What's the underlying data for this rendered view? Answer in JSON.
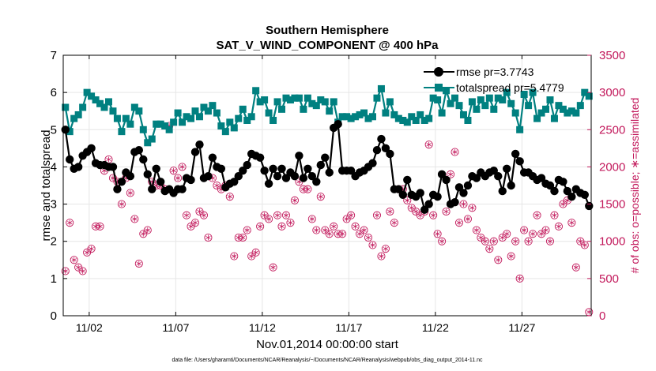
{
  "chart_data": {
    "type": "line",
    "title": "Southern Hemisphere",
    "subtitle": "SAT_V_WIND_COMPONENT @ 400 hPa",
    "xlabel": "Nov.01,2014 00:00:00 start",
    "ylabel": "rmse and totalspread",
    "ylabel_right": "# of obs: o=possible; ∗=assimilated",
    "footer": "data file: /Users/gharamti/Documents/NCAR/Reanalysis/~/Documents/NCAR/Reanalysis/webpub/obs_diag_output_2014-11.nc",
    "xlim": [
      0.5,
      31.0
    ],
    "ylim": [
      0,
      7
    ],
    "ylim_right": [
      0,
      3500
    ],
    "x_ticks": [
      2,
      7,
      12,
      17,
      22,
      27
    ],
    "x_tick_labels": [
      "11/02",
      "11/07",
      "11/12",
      "11/17",
      "11/22",
      "11/27"
    ],
    "y_ticks": [
      0,
      1,
      2,
      3,
      4,
      5,
      6,
      7
    ],
    "y_ticks_right": [
      0,
      500,
      1000,
      1500,
      2000,
      2500,
      3000,
      3500
    ],
    "grid": true,
    "legend": "top-right",
    "series": [
      {
        "name": "rmse pr=3.7743",
        "axis": "left",
        "color": "#000000",
        "x": [
          0.625,
          0.875,
          1.125,
          1.375,
          1.625,
          1.875,
          2.125,
          2.375,
          2.625,
          2.875,
          3.125,
          3.375,
          3.625,
          3.875,
          4.125,
          4.375,
          4.625,
          4.875,
          5.125,
          5.375,
          5.625,
          5.875,
          6.125,
          6.375,
          6.625,
          6.875,
          7.125,
          7.375,
          7.625,
          7.875,
          8.125,
          8.375,
          8.625,
          8.875,
          9.125,
          9.375,
          9.625,
          9.875,
          10.125,
          10.375,
          10.625,
          10.875,
          11.125,
          11.375,
          11.625,
          11.875,
          12.125,
          12.375,
          12.625,
          12.875,
          13.125,
          13.375,
          13.625,
          13.875,
          14.125,
          14.375,
          14.625,
          14.875,
          15.125,
          15.375,
          15.625,
          15.875,
          16.125,
          16.375,
          16.625,
          16.875,
          17.125,
          17.375,
          17.625,
          17.875,
          18.125,
          18.375,
          18.625,
          18.875,
          19.125,
          19.375,
          19.625,
          19.875,
          20.125,
          20.375,
          20.625,
          20.875,
          21.125,
          21.375,
          21.625,
          21.875,
          22.125,
          22.375,
          22.625,
          22.875,
          23.125,
          23.375,
          23.625,
          23.875,
          24.125,
          24.375,
          24.625,
          24.875,
          25.125,
          25.375,
          25.625,
          25.875,
          26.125,
          26.375,
          26.625,
          26.875,
          27.125,
          27.375,
          27.625,
          27.875,
          28.125,
          28.375,
          28.625,
          28.875,
          29.125,
          29.375,
          29.625,
          29.875,
          30.125,
          30.375,
          30.625,
          30.875
        ],
        "values": [
          5.0,
          4.2,
          3.95,
          4.0,
          4.3,
          4.4,
          4.5,
          4.1,
          4.05,
          4.05,
          4.0,
          4.0,
          3.4,
          3.6,
          3.85,
          3.75,
          4.4,
          4.45,
          4.2,
          3.8,
          3.4,
          3.95,
          3.6,
          3.35,
          3.4,
          3.3,
          3.4,
          3.4,
          3.7,
          3.65,
          4.4,
          4.6,
          3.7,
          3.75,
          4.25,
          4.0,
          3.95,
          3.45,
          3.55,
          3.6,
          3.75,
          3.9,
          4.05,
          4.35,
          4.3,
          4.25,
          3.9,
          3.55,
          3.95,
          3.75,
          3.95,
          3.7,
          3.85,
          3.75,
          4.3,
          3.7,
          3.95,
          3.75,
          3.6,
          4.05,
          4.25,
          3.85,
          5.05,
          5.15,
          3.9,
          3.9,
          3.9,
          3.75,
          3.85,
          3.9,
          4.0,
          4.1,
          4.45,
          4.75,
          4.5,
          4.35,
          3.4,
          3.4,
          3.25,
          3.65,
          3.25,
          3.2,
          3.3,
          2.85,
          3.0,
          3.25,
          3.2,
          3.8,
          3.65,
          3.0,
          3.05,
          3.45,
          3.3,
          3.5,
          3.75,
          3.7,
          3.85,
          3.75,
          3.85,
          3.9,
          3.75,
          3.35,
          3.95,
          3.5,
          4.35,
          4.15,
          3.85,
          3.85,
          3.75,
          3.65,
          3.7,
          3.55,
          3.5,
          3.35,
          3.65,
          3.6,
          3.35,
          3.2,
          3.4,
          3.3,
          3.25,
          2.95
        ]
      },
      {
        "name": "totalspread pr=5.4779",
        "axis": "left",
        "color": "#008080",
        "x": [
          0.625,
          0.875,
          1.125,
          1.375,
          1.625,
          1.875,
          2.125,
          2.375,
          2.625,
          2.875,
          3.125,
          3.375,
          3.625,
          3.875,
          4.125,
          4.375,
          4.625,
          4.875,
          5.125,
          5.375,
          5.625,
          5.875,
          6.125,
          6.375,
          6.625,
          6.875,
          7.125,
          7.375,
          7.625,
          7.875,
          8.125,
          8.375,
          8.625,
          8.875,
          9.125,
          9.375,
          9.625,
          9.875,
          10.125,
          10.375,
          10.625,
          10.875,
          11.125,
          11.375,
          11.625,
          11.875,
          12.125,
          12.375,
          12.625,
          12.875,
          13.125,
          13.375,
          13.625,
          13.875,
          14.125,
          14.375,
          14.625,
          14.875,
          15.125,
          15.375,
          15.625,
          15.875,
          16.125,
          16.375,
          16.625,
          16.875,
          17.125,
          17.375,
          17.625,
          17.875,
          18.125,
          18.375,
          18.625,
          18.875,
          19.125,
          19.375,
          19.625,
          19.875,
          20.125,
          20.375,
          20.625,
          20.875,
          21.125,
          21.375,
          21.625,
          21.875,
          22.125,
          22.375,
          22.625,
          22.875,
          23.125,
          23.375,
          23.625,
          23.875,
          24.125,
          24.375,
          24.625,
          24.875,
          25.125,
          25.375,
          25.625,
          25.875,
          26.125,
          26.375,
          26.625,
          26.875,
          27.125,
          27.375,
          27.625,
          27.875,
          28.125,
          28.375,
          28.625,
          28.875,
          29.125,
          29.375,
          29.625,
          29.875,
          30.125,
          30.375,
          30.625,
          30.875
        ],
        "values": [
          5.6,
          4.95,
          5.3,
          5.4,
          5.6,
          6.0,
          5.9,
          5.8,
          5.7,
          5.6,
          5.75,
          5.5,
          5.3,
          4.95,
          5.3,
          5.15,
          5.6,
          5.5,
          5.0,
          4.65,
          4.75,
          5.15,
          5.15,
          5.1,
          5.0,
          5.2,
          5.45,
          5.2,
          5.35,
          5.3,
          5.5,
          5.35,
          5.6,
          5.5,
          5.65,
          5.45,
          5.1,
          4.95,
          5.2,
          5.05,
          5.3,
          5.55,
          5.25,
          5.35,
          6.05,
          5.75,
          5.8,
          5.45,
          5.25,
          5.75,
          5.55,
          5.85,
          5.8,
          5.85,
          5.85,
          5.55,
          5.85,
          5.7,
          5.65,
          5.8,
          5.75,
          5.5,
          5.75,
          5.2,
          5.35,
          5.35,
          5.3,
          5.35,
          5.4,
          5.45,
          5.3,
          5.35,
          5.85,
          6.1,
          5.45,
          5.75,
          5.4,
          5.3,
          5.25,
          5.2,
          5.35,
          5.25,
          5.4,
          5.25,
          5.3,
          5.85,
          5.8,
          5.45,
          6.05,
          5.7,
          5.85,
          5.65,
          5.4,
          5.25,
          5.75,
          5.55,
          5.8,
          5.65,
          5.85,
          5.55,
          5.85,
          5.8,
          6.0,
          5.7,
          5.45,
          5.0,
          5.95,
          5.65,
          6.0,
          5.3,
          5.45,
          5.55,
          5.8,
          5.3,
          5.65,
          5.55,
          5.45,
          5.5,
          5.45,
          5.65,
          6.0,
          5.9
        ]
      },
      {
        "name": "# of obs possible",
        "axis": "right",
        "color": "#c2185b",
        "marker": "o",
        "x": [
          0.625,
          0.875,
          1.125,
          1.375,
          1.625,
          1.875,
          2.125,
          2.375,
          2.625,
          2.875,
          3.125,
          3.375,
          3.625,
          3.875,
          4.125,
          4.375,
          4.625,
          4.875,
          5.125,
          5.375,
          5.625,
          5.875,
          6.125,
          6.375,
          6.625,
          6.875,
          7.125,
          7.375,
          7.625,
          7.875,
          8.125,
          8.375,
          8.625,
          8.875,
          9.125,
          9.375,
          9.625,
          9.875,
          10.125,
          10.375,
          10.625,
          10.875,
          11.125,
          11.375,
          11.625,
          11.875,
          12.125,
          12.375,
          12.625,
          12.875,
          13.125,
          13.375,
          13.625,
          13.875,
          14.125,
          14.375,
          14.625,
          14.875,
          15.125,
          15.375,
          15.625,
          15.875,
          16.125,
          16.375,
          16.625,
          16.875,
          17.125,
          17.375,
          17.625,
          17.875,
          18.125,
          18.375,
          18.625,
          18.875,
          19.125,
          19.375,
          19.625,
          19.875,
          20.125,
          20.375,
          20.625,
          20.875,
          21.125,
          21.375,
          21.625,
          21.875,
          22.125,
          22.375,
          22.625,
          22.875,
          23.125,
          23.375,
          23.625,
          23.875,
          24.125,
          24.375,
          24.625,
          24.875,
          25.125,
          25.375,
          25.625,
          25.875,
          26.125,
          26.375,
          26.625,
          26.875,
          27.125,
          27.375,
          27.625,
          27.875,
          28.125,
          28.375,
          28.625,
          28.875,
          29.125,
          29.375,
          29.625,
          29.875,
          30.125,
          30.375,
          30.625,
          30.875
        ],
        "values": [
          600,
          1250,
          750,
          650,
          600,
          850,
          900,
          1200,
          1200,
          1950,
          2100,
          1850,
          1800,
          1500,
          1850,
          1650,
          1300,
          700,
          1100,
          1150,
          1800,
          1750,
          1750,
          1700,
          2550,
          1950,
          1850,
          2000,
          1350,
          1200,
          1250,
          1400,
          1350,
          1050,
          1850,
          1750,
          1700,
          1750,
          1600,
          800,
          1050,
          1050,
          1150,
          800,
          850,
          1200,
          1350,
          1300,
          650,
          1350,
          1200,
          1350,
          1250,
          1550,
          1800,
          1700,
          1700,
          1300,
          1150,
          1600,
          1150,
          1100,
          1200,
          1100,
          1100,
          1300,
          1350,
          1200,
          1100,
          1150,
          1050,
          950,
          1350,
          800,
          900,
          1400,
          1250,
          1700,
          1700,
          1550,
          1450,
          1400,
          1350,
          1400,
          2300,
          1350,
          1100,
          1000,
          1400,
          1900,
          2200,
          1250,
          1500,
          1300,
          1450,
          1150,
          1050,
          1000,
          900,
          1000,
          750,
          1050,
          1100,
          800,
          1000,
          500,
          1150,
          1000,
          1100,
          1350,
          1100,
          1150,
          1000,
          1350,
          1200,
          1500,
          1550,
          1250,
          650,
          1000,
          950,
          50
        ]
      },
      {
        "name": "# of obs assimilated",
        "axis": "right",
        "color": "#c2185b",
        "marker": "*",
        "x": [
          0.625,
          0.875,
          1.125,
          1.375,
          1.625,
          1.875,
          2.125,
          2.375,
          2.625,
          2.875,
          3.125,
          3.375,
          3.625,
          3.875,
          4.125,
          4.375,
          4.625,
          4.875,
          5.125,
          5.375,
          5.625,
          5.875,
          6.125,
          6.375,
          6.625,
          6.875,
          7.125,
          7.375,
          7.625,
          7.875,
          8.125,
          8.375,
          8.625,
          8.875,
          9.125,
          9.375,
          9.625,
          9.875,
          10.125,
          10.375,
          10.625,
          10.875,
          11.125,
          11.375,
          11.625,
          11.875,
          12.125,
          12.375,
          12.625,
          12.875,
          13.125,
          13.375,
          13.625,
          13.875,
          14.125,
          14.375,
          14.625,
          14.875,
          15.125,
          15.375,
          15.625,
          15.875,
          16.125,
          16.375,
          16.625,
          16.875,
          17.125,
          17.375,
          17.625,
          17.875,
          18.125,
          18.375,
          18.625,
          18.875,
          19.125,
          19.375,
          19.625,
          19.875,
          20.125,
          20.375,
          20.625,
          20.875,
          21.125,
          21.375,
          21.625,
          21.875,
          22.125,
          22.375,
          22.625,
          22.875,
          23.125,
          23.375,
          23.625,
          23.875,
          24.125,
          24.375,
          24.625,
          24.875,
          25.125,
          25.375,
          25.625,
          25.875,
          26.125,
          26.375,
          26.625,
          26.875,
          27.125,
          27.375,
          27.625,
          27.875,
          28.125,
          28.375,
          28.625,
          28.875,
          29.125,
          29.375,
          29.625,
          29.875,
          30.125,
          30.375,
          30.625,
          30.875
        ],
        "values": [
          600,
          1250,
          750,
          650,
          600,
          850,
          900,
          1200,
          1200,
          1950,
          2100,
          1850,
          1800,
          1500,
          1850,
          1650,
          1300,
          700,
          1100,
          1150,
          1800,
          1750,
          1750,
          1700,
          2550,
          1950,
          1850,
          2000,
          1350,
          1200,
          1250,
          1400,
          1350,
          1050,
          1850,
          1750,
          1700,
          1750,
          1600,
          800,
          1050,
          1050,
          1150,
          800,
          850,
          1200,
          1350,
          1300,
          650,
          1350,
          1200,
          1350,
          1250,
          1550,
          1800,
          1700,
          1700,
          1300,
          1150,
          1600,
          1150,
          1100,
          1200,
          1100,
          1100,
          1300,
          1350,
          1200,
          1100,
          1150,
          1050,
          950,
          1350,
          800,
          900,
          1400,
          1250,
          1700,
          1700,
          1550,
          1450,
          1400,
          1350,
          1400,
          2300,
          1350,
          1100,
          1000,
          1400,
          1900,
          2200,
          1250,
          1500,
          1300,
          1450,
          1150,
          1050,
          1000,
          900,
          1000,
          750,
          1050,
          1100,
          800,
          1000,
          500,
          1150,
          1000,
          1100,
          1350,
          1100,
          1150,
          1000,
          1350,
          1200,
          1500,
          1550,
          1250,
          650,
          1000,
          950,
          50
        ]
      }
    ]
  }
}
